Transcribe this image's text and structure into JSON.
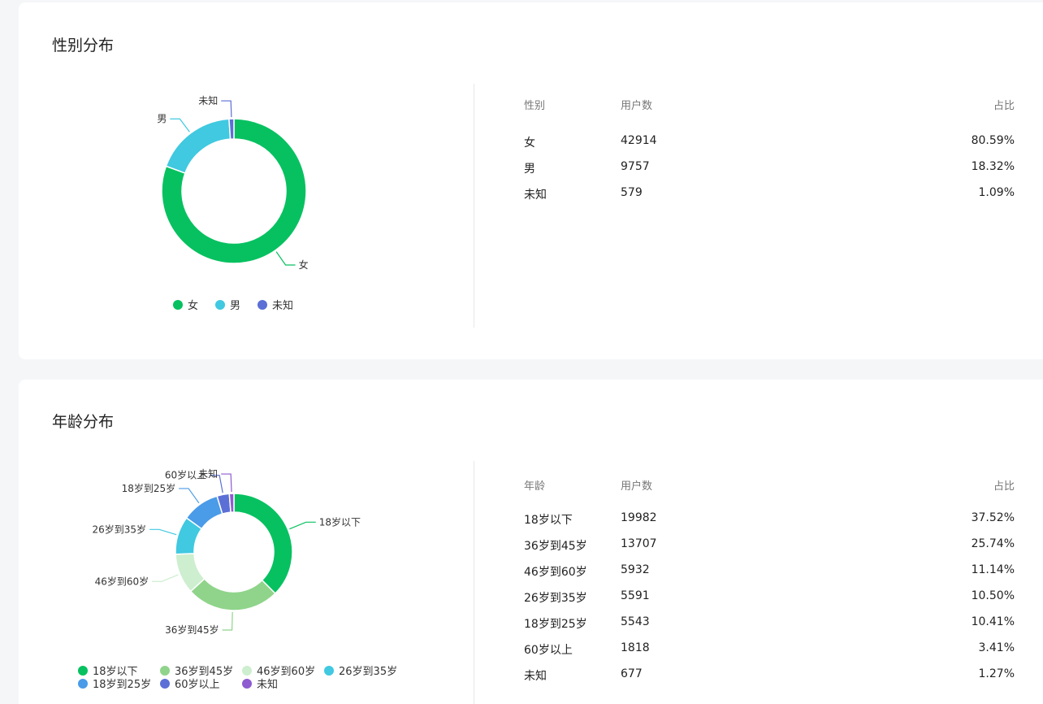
{
  "gender": {
    "title": "性别分布",
    "table_headers": {
      "category": "性别",
      "users": "用户数",
      "ratio": "占比"
    },
    "rows": [
      {
        "category": "女",
        "users": "42914",
        "ratio": "80.59%"
      },
      {
        "category": "男",
        "users": "9757",
        "ratio": "18.32%"
      },
      {
        "category": "未知",
        "users": "579",
        "ratio": "1.09%"
      }
    ]
  },
  "age": {
    "title": "年龄分布",
    "table_headers": {
      "category": "年龄",
      "users": "用户数",
      "ratio": "占比"
    },
    "rows": [
      {
        "category": "18岁以下",
        "users": "19982",
        "ratio": "37.52%"
      },
      {
        "category": "36岁到45岁",
        "users": "13707",
        "ratio": "25.74%"
      },
      {
        "category": "46岁到60岁",
        "users": "5932",
        "ratio": "11.14%"
      },
      {
        "category": "26岁到35岁",
        "users": "5591",
        "ratio": "10.50%"
      },
      {
        "category": "18岁到25岁",
        "users": "5543",
        "ratio": "10.41%"
      },
      {
        "category": "60岁以上",
        "users": "1818",
        "ratio": "3.41%"
      },
      {
        "category": "未知",
        "users": "677",
        "ratio": "1.27%"
      }
    ]
  },
  "chart_data": [
    {
      "type": "pie",
      "categories": [
        "女",
        "男",
        "未知"
      ],
      "values": [
        42914,
        9757,
        579
      ],
      "colors": [
        "#07c160",
        "#40c9e0",
        "#5b6fd6"
      ],
      "legend": "bottom"
    },
    {
      "type": "pie",
      "categories": [
        "18岁以下",
        "36岁到45岁",
        "46岁到60岁",
        "26岁到35岁",
        "18岁到25岁",
        "60岁以上",
        "未知"
      ],
      "values": [
        19982,
        13707,
        5932,
        5591,
        5543,
        1818,
        677
      ],
      "colors": [
        "#07c160",
        "#8fd48a",
        "#cdeecf",
        "#40c9e0",
        "#4a9be8",
        "#5b6fd6",
        "#8e5bd0"
      ],
      "legend": "bottom"
    }
  ]
}
